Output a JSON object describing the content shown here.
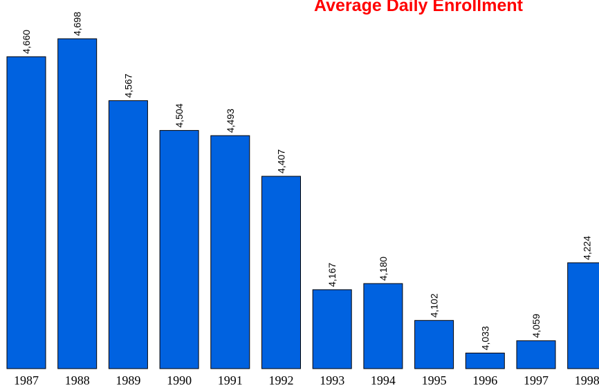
{
  "chart_data": {
    "type": "bar",
    "title": "Average Daily Enrollment",
    "categories": [
      "1987",
      "1988",
      "1989",
      "1990",
      "1991",
      "1992",
      "1993",
      "1994",
      "1995",
      "1996",
      "1997",
      "1998"
    ],
    "values": [
      4660,
      4698,
      4567,
      4504,
      4493,
      4407,
      4167,
      4180,
      4102,
      4033,
      4059,
      4224
    ],
    "value_labels": [
      "4,660",
      "4,698",
      "4,567",
      "4,504",
      "4,493",
      "4,407",
      "4,167",
      "4,180",
      "4,102",
      "4,033",
      "4,059",
      "4,224"
    ],
    "color": "#0062e0",
    "ylim": [
      4000,
      4780
    ]
  }
}
